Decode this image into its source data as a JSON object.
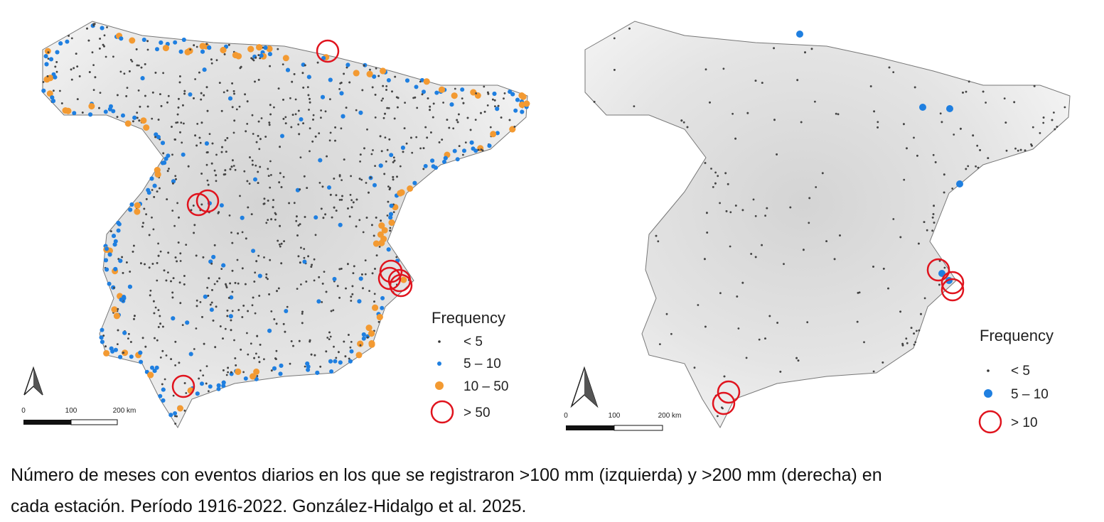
{
  "maps": [
    {
      "legend": {
        "title": "Frequency",
        "items": [
          "< 5",
          "5 – 10",
          "10 – 50",
          "> 50"
        ]
      },
      "scale": [
        "0",
        "100",
        "200 km"
      ]
    },
    {
      "legend": {
        "title": "Frequency",
        "items": [
          "< 5",
          "5 – 10",
          "> 10"
        ]
      },
      "scale": [
        "0",
        "100",
        "200 km"
      ]
    }
  ],
  "caption": [
    "Número de meses con eventos diarios en los que se registraron >100 mm (izquierda) y >200 mm (derecha) en",
    "cada estación. Período 1916-2022. González-Hidalgo et al. 2025."
  ]
}
